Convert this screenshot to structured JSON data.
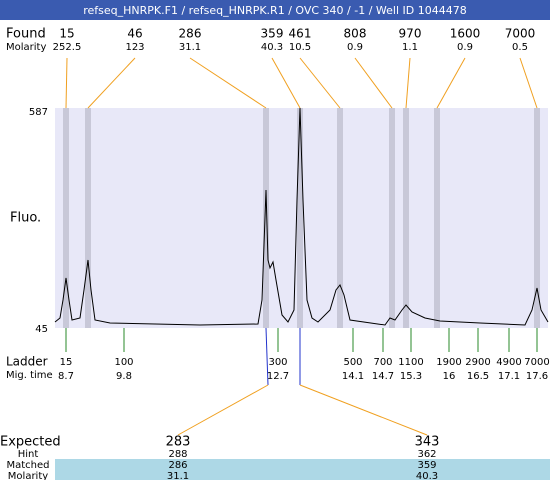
{
  "title": "refseq_HNRPK.F1 / refseq_HNRPK.R1 / OVC 340 / -1 / Well ID 1044478",
  "found": {
    "label": "Found",
    "molarity_label": "Molarity",
    "sizes": [
      "15",
      "46",
      "286",
      "359",
      "461",
      "808",
      "970",
      "1600",
      "7000"
    ],
    "molarity": [
      "252.5",
      "123",
      "31.1",
      "40.3",
      "10.5",
      "0.9",
      "1.1",
      "0.9",
      "0.5"
    ]
  },
  "plot": {
    "y_label": "Fluo.",
    "y_max": "587",
    "y_min": "45"
  },
  "ladder": {
    "label": "Ladder",
    "mig_time_label": "Mig. time",
    "sizes": [
      "15",
      "100",
      "300",
      "500",
      "700",
      "1100",
      "1900",
      "2900",
      "4900",
      "7000"
    ],
    "mig_times": [
      "8.7",
      "9.8",
      "12.7",
      "14.1",
      "14.7",
      "15.3",
      "16",
      "16.5",
      "17.1",
      "17.6"
    ]
  },
  "expected": {
    "label": "Expected",
    "hint_label": "Hint",
    "matched_label": "Matched",
    "molarity_label": "Molarity",
    "expected": [
      "283",
      "343"
    ],
    "hint": [
      "288",
      "362"
    ],
    "matched": [
      "286",
      "359"
    ],
    "molarity": [
      "31.1",
      "40.3"
    ]
  }
}
